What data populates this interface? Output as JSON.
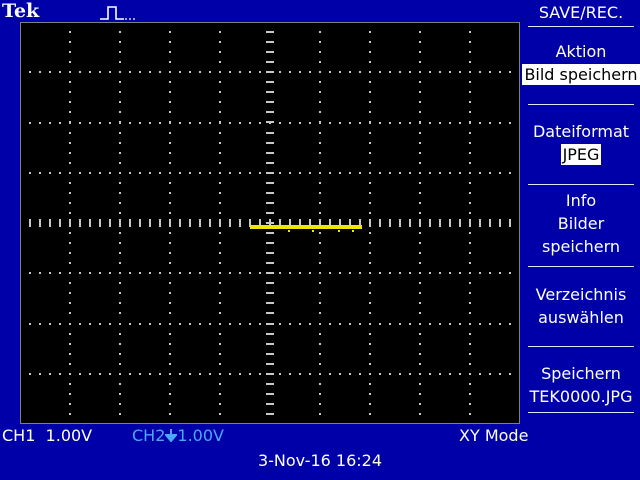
{
  "header": {
    "brand": "Tek",
    "trigger_icon": "pulse-icon"
  },
  "menu": {
    "title": "SAVE/REC.",
    "items": [
      {
        "label": "Aktion",
        "value": "Bild speichern"
      },
      {
        "label": "Dateiformat",
        "value": "JPEG"
      },
      {
        "line1": "Info",
        "line2": "Bilder",
        "line3": "speichern"
      },
      {
        "line1": "Verzeichnis",
        "line2": "auswählen"
      },
      {
        "line1": "Speichern",
        "line2": "TEK0000.JPG"
      }
    ]
  },
  "status": {
    "ch1": "CH1  1.00V",
    "ch2_name": "CH2",
    "ch2_value": "1.00V",
    "mode": "XY Mode",
    "datetime": "3-Nov-16 16:24"
  },
  "colors": {
    "trace": "#f2e600",
    "background": "#0000a8",
    "ch2": "#4aa8ff"
  }
}
